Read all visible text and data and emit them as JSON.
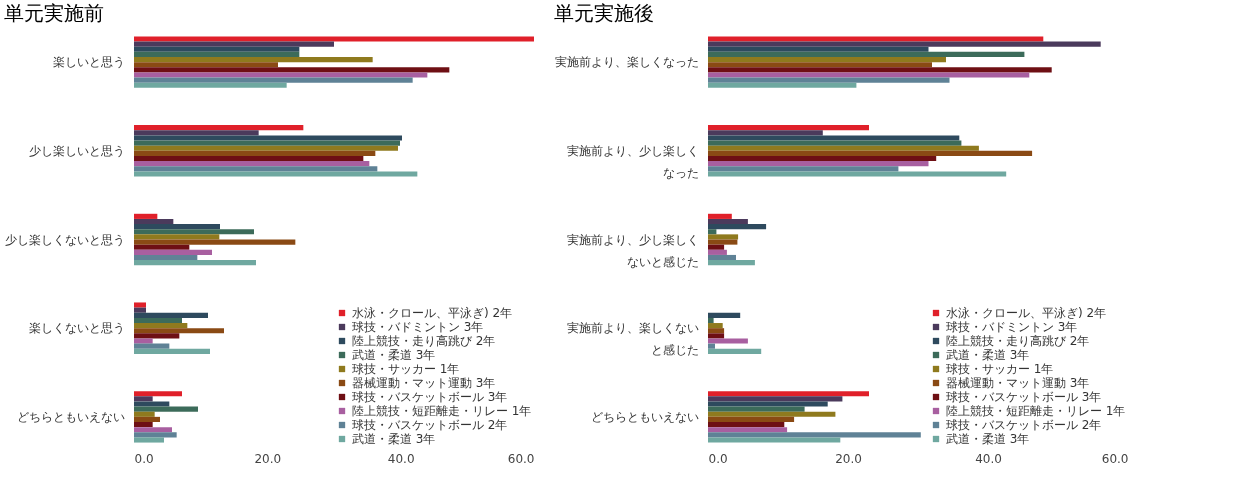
{
  "chart_data": [
    {
      "type": "bar",
      "orientation": "horizontal",
      "title": "単元実施前",
      "categories": [
        "楽しいと思う",
        "少し楽しいと思う",
        "少し楽しくないと思う",
        "楽しくないと思う",
        "どちらともいえない"
      ],
      "xlim": [
        0,
        60
      ],
      "xticks": [
        {
          "value": 0,
          "label": "0.0"
        },
        {
          "value": 20,
          "label": "20.0"
        },
        {
          "value": 40,
          "label": "40.0"
        },
        {
          "value": 60,
          "label": "60.0"
        }
      ],
      "grid": false,
      "legend": "bottom right",
      "series": [
        {
          "name": "水泳・クロール、平泳ぎ) 2年",
          "color": "#e0202a",
          "values": [
            60,
            25.4,
            3.5,
            1.8,
            7.2
          ]
        },
        {
          "name": "球技・バドミントン 3年",
          "color": "#4b3a5c",
          "values": [
            30,
            18.7,
            5.9,
            1.8,
            2.8
          ]
        },
        {
          "name": "陸上競技・走り高跳び 2年",
          "color": "#2e4a5e",
          "values": [
            24.8,
            40.2,
            12.9,
            11.1,
            5.3
          ]
        },
        {
          "name": "武道・柔道 3年",
          "color": "#3c6b5a",
          "values": [
            24.8,
            39.9,
            18,
            7.2,
            9.6
          ]
        },
        {
          "name": "球技・サッカー 1年",
          "color": "#8f7a1e",
          "values": [
            35.8,
            39.6,
            12.8,
            8,
            3.1
          ]
        },
        {
          "name": "器械運動・マット運動 3年",
          "color": "#8a4a14",
          "values": [
            21.6,
            36.2,
            24.2,
            13.5,
            3.9
          ]
        },
        {
          "name": "球技・バスケットボール 3年",
          "color": "#6e0f14",
          "values": [
            47.3,
            34.4,
            8.3,
            6.8,
            2.8
          ]
        },
        {
          "name": "陸上競技・短距離走・リレー 1年",
          "color": "#a85fa0",
          "values": [
            44,
            35.3,
            11.7,
            2.8,
            5.7
          ]
        },
        {
          "name": "球技・バスケットボール 2年",
          "color": "#5f8296",
          "values": [
            41.8,
            36.5,
            9.5,
            5.3,
            6.4
          ]
        },
        {
          "name": "武道・柔道 3年",
          "color": "#6fa8a0",
          "values": [
            22.9,
            42.5,
            18.3,
            11.4,
            4.5
          ]
        }
      ]
    },
    {
      "type": "bar",
      "orientation": "horizontal",
      "title": "単元実施後",
      "categories": [
        "実施前より、楽しくなった",
        "実施前より、少し楽しくなった",
        "実施前より、少し楽しくないと感じた",
        "実施前より、楽しくないと感じた",
        "どちらともいえない"
      ],
      "xlim": [
        0,
        60
      ],
      "xticks": [
        {
          "value": 0,
          "label": "0.0"
        },
        {
          "value": 20,
          "label": "20.0"
        },
        {
          "value": 40,
          "label": "40.0"
        },
        {
          "value": 60,
          "label": "60.0"
        }
      ],
      "grid": false,
      "legend": "bottom right",
      "series": [
        {
          "name": "水泳・クロール、平泳ぎ) 2年",
          "color": "#e0202a",
          "values": [
            47.9,
            23,
            3.4,
            0,
            23
          ]
        },
        {
          "name": "球技・バドミントン 3年",
          "color": "#4b3a5c",
          "values": [
            56.1,
            16.4,
            5.7,
            0,
            19.2
          ]
        },
        {
          "name": "陸上競技・走り高跳び 2年",
          "color": "#2e4a5e",
          "values": [
            31.5,
            35.9,
            8.3,
            4.6,
            17.1
          ]
        },
        {
          "name": "武道・柔道 3年",
          "color": "#3c6b5a",
          "values": [
            45.2,
            36.2,
            1.2,
            0.8,
            13.8
          ]
        },
        {
          "name": "球技・サッカー 1年",
          "color": "#8f7a1e",
          "values": [
            34,
            38.7,
            4.3,
            2.1,
            18.2
          ]
        },
        {
          "name": "器械運動・マット運動 3年",
          "color": "#8a4a14",
          "values": [
            32,
            46.3,
            4.2,
            2.3,
            12.3
          ]
        },
        {
          "name": "球技・バスケットボール 3年",
          "color": "#6e0f14",
          "values": [
            49.1,
            32.6,
            2.3,
            2.3,
            10.9
          ]
        },
        {
          "name": "陸上競技・短距離走・リレー 1年",
          "color": "#a85fa0",
          "values": [
            45.9,
            31.5,
            2.7,
            5.7,
            11.3
          ]
        },
        {
          "name": "球技・バスケットボール 2年",
          "color": "#5f8296",
          "values": [
            34.5,
            27.2,
            4,
            1,
            30.4
          ]
        },
        {
          "name": "武道・柔道 3年",
          "color": "#6fa8a0",
          "values": [
            21.2,
            42.6,
            6.7,
            7.6,
            18.9
          ]
        }
      ]
    }
  ]
}
